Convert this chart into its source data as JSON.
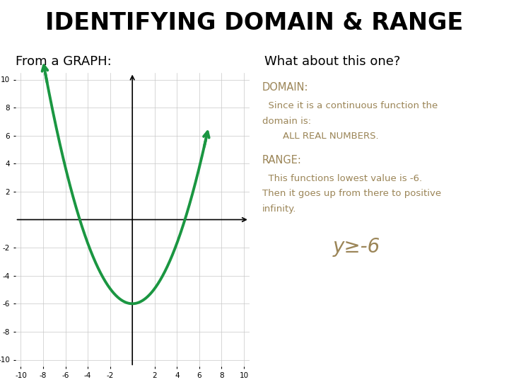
{
  "title": "IDENTIFYING DOMAIN & RANGE",
  "subtitle_left": "From a GRAPH:",
  "subtitle_right": "What about this one?",
  "background_color": "#ffffff",
  "title_fontsize": 24,
  "subtitle_fontsize": 13,
  "domain_label": "DOMAIN:",
  "domain_line1": "  Since it is a continuous function the",
  "domain_line2": "domain is:",
  "domain_line3": "      ALL REAL NUMBERS.",
  "range_label": "RANGE:",
  "range_line1": "  This functions lowest value is -6.",
  "range_line2": "Then it goes up from there to positive",
  "range_line3": "infinity.",
  "range_formula": "y≥-6",
  "text_color_brown": "#9b8557",
  "curve_color": "#1a9641",
  "curve_linewidth": 2.8,
  "grid_color": "#c8c8c8",
  "axis_color": "#000000",
  "xlim": [
    -10.5,
    10.5
  ],
  "ylim": [
    -10.5,
    10.5
  ],
  "xticks": [
    -10,
    -8,
    -6,
    -4,
    -2,
    2,
    4,
    6,
    8,
    10
  ],
  "yticks": [
    -10,
    -8,
    -6,
    -4,
    -2,
    2,
    4,
    6,
    8,
    10
  ],
  "vertex_x": 0,
  "vertex_y": -6,
  "parabola_a": 0.27,
  "x_left_end": -9.2,
  "x_right_end": 6.6
}
